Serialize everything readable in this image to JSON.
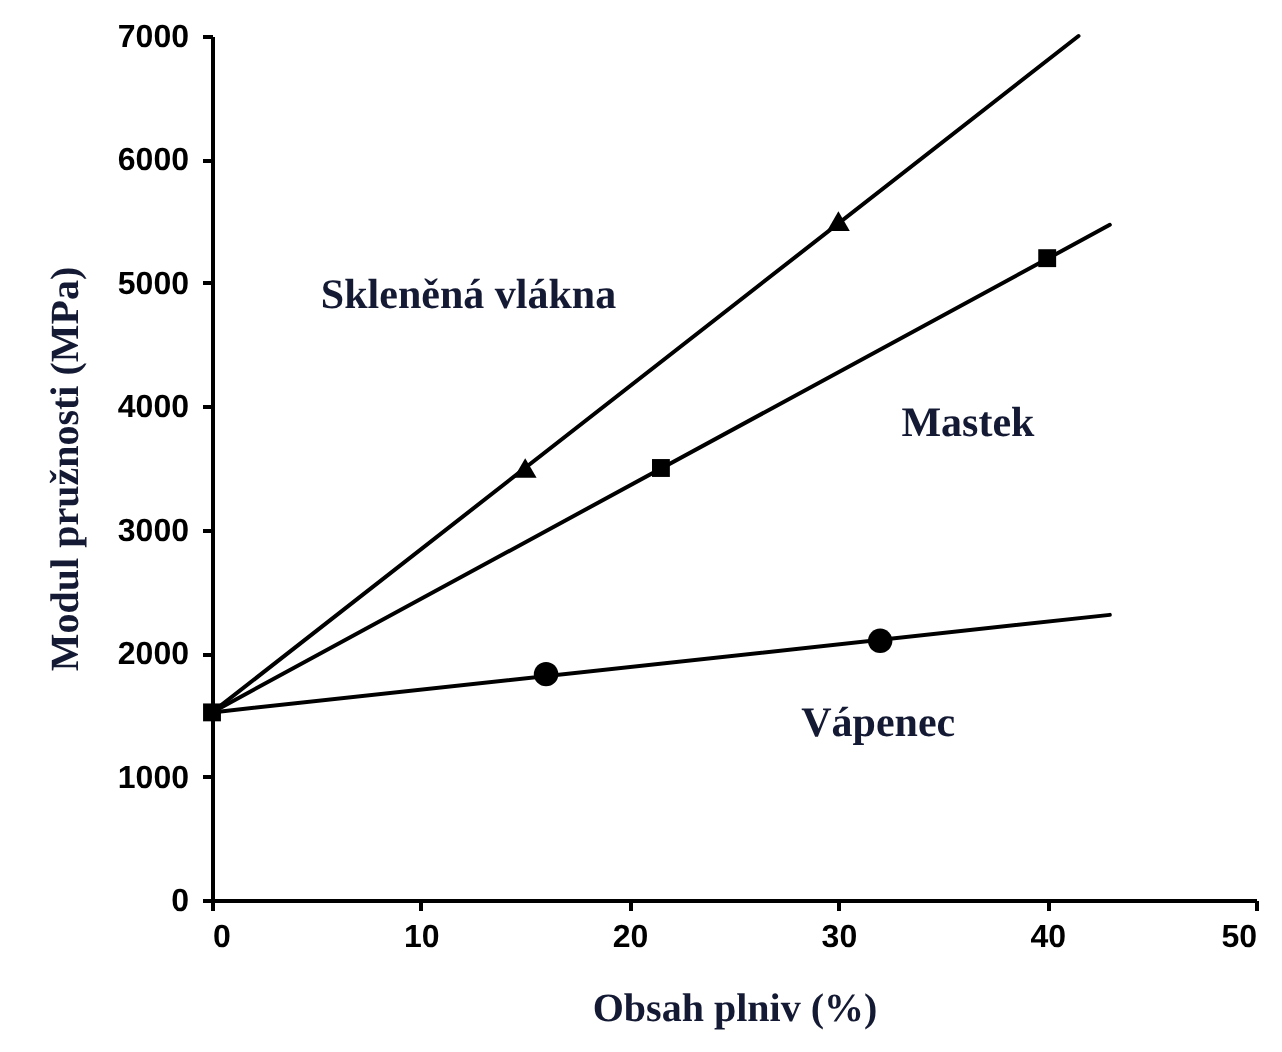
{
  "chart_data": {
    "type": "line",
    "xlabel": "Obsah plniv (%)",
    "ylabel": "Modul pružnosti (MPa)",
    "xlim": [
      0,
      50
    ],
    "ylim": [
      0,
      7000
    ],
    "xticks": [
      0,
      10,
      20,
      30,
      40,
      50
    ],
    "yticks": [
      0,
      1000,
      2000,
      3000,
      4000,
      5000,
      6000,
      7000
    ],
    "series": [
      {
        "name": "Skleněná vlákna",
        "color": "#000000",
        "x": [
          0,
          41.5
        ],
        "values": [
          1520,
          7000
        ]
      },
      {
        "name": "Mastek",
        "color": "#000000",
        "x": [
          0,
          43
        ],
        "values": [
          1520,
          5470
        ]
      },
      {
        "name": "Vápenec",
        "color": "#000000",
        "x": [
          0,
          43
        ],
        "values": [
          1520,
          2310
        ]
      },
      {
        "type": "scatter",
        "color": "#000000",
        "marker": "triangle",
        "x": [
          15,
          30
        ],
        "values": [
          3500,
          5500
        ]
      },
      {
        "type": "scatter",
        "color": "#000000",
        "marker": "square",
        "x": [
          0,
          21.5,
          40
        ],
        "values": [
          1520,
          3500,
          5200
        ]
      },
      {
        "type": "scatter",
        "color": "#000000",
        "marker": "circle",
        "x": [
          16,
          32
        ],
        "values": [
          1830,
          2100
        ]
      }
    ]
  }
}
